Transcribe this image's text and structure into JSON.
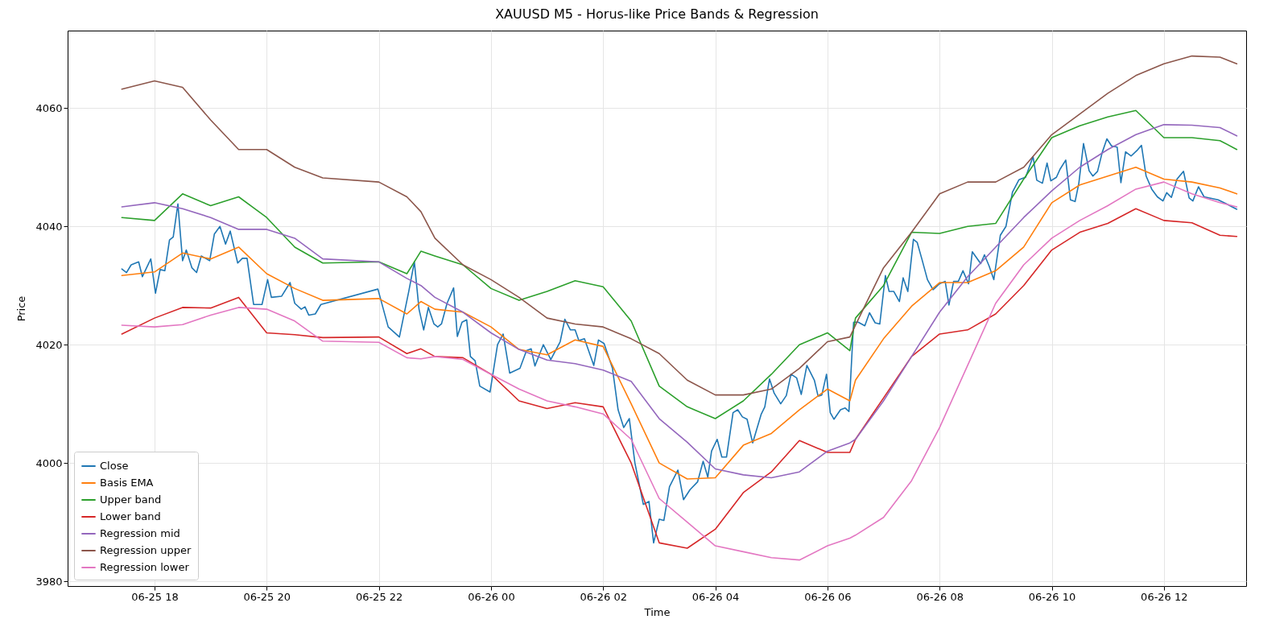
{
  "chart_data": {
    "type": "line",
    "title": "XAUUSD M5 - Horus-like Price Bands & Regression",
    "xlabel": "Time",
    "ylabel": "Price",
    "x": [
      "--06-25T17:25",
      "--06-25T18:00",
      "--06-25T18:30",
      "--06-25T19:00",
      "--06-25T19:30",
      "--06-25T20:00",
      "--06-25T20:30",
      "--06-25T21:00",
      "--06-25T22:00",
      "--06-25T22:30",
      "--06-25T22:45",
      "--06-25T23:00",
      "--06-25T23:30",
      "--06-26T00:00",
      "--06-26T00:30",
      "--06-26T01:00",
      "--06-26T01:30",
      "--06-26T02:00",
      "--06-26T02:30",
      "--06-26T03:00",
      "--06-26T03:30",
      "--06-26T04:00",
      "--06-26T04:30",
      "--06-26T05:00",
      "--06-26T05:30",
      "--06-26T06:00",
      "--06-26T06:24",
      "--06-26T06:30",
      "--06-26T07:00",
      "--06-26T07:30",
      "--06-26T08:00",
      "--06-26T08:30",
      "--06-26T09:00",
      "--06-26T09:30",
      "--06-26T10:00",
      "--06-26T10:30",
      "--06-26T11:00",
      "--06-26T11:30",
      "--06-26T12:00",
      "--06-26T12:30",
      "--06-26T13:00",
      "--06-26T13:18"
    ],
    "xlim": [
      "--06-25T16:27",
      "--06-26T13:28"
    ],
    "ylim": [
      3979.2,
      4073.1
    ],
    "xticks": [
      {
        "value": "--06-25T18:00",
        "label": "06-25 18"
      },
      {
        "value": "--06-25T20:00",
        "label": "06-25 20"
      },
      {
        "value": "--06-25T22:00",
        "label": "06-25 22"
      },
      {
        "value": "--06-26T00:00",
        "label": "06-26 00"
      },
      {
        "value": "--06-26T02:00",
        "label": "06-26 02"
      },
      {
        "value": "--06-26T04:00",
        "label": "06-26 04"
      },
      {
        "value": "--06-26T06:00",
        "label": "06-26 06"
      },
      {
        "value": "--06-26T08:00",
        "label": "06-26 08"
      },
      {
        "value": "--06-26T10:00",
        "label": "06-26 10"
      },
      {
        "value": "--06-26T12:00",
        "label": "06-26 12"
      }
    ],
    "yticks": [
      3980,
      4000,
      4020,
      4040,
      4060
    ],
    "grid": true,
    "legend": "bottom left",
    "series": [
      {
        "name": "Close",
        "color": "#1f77b4",
        "x": [
          "--06-25T17:25",
          "--06-25T17:30",
          "--06-25T17:35",
          "--06-25T17:43",
          "--06-25T17:47",
          "--06-25T17:56",
          "--06-25T18:01",
          "--06-25T18:06",
          "--06-25T18:11",
          "--06-25T18:16",
          "--06-25T18:20",
          "--06-25T18:25",
          "--06-25T18:30",
          "--06-25T18:34",
          "--06-25T18:40",
          "--06-25T18:45",
          "--06-25T18:50",
          "--06-25T18:59",
          "--06-25T19:04",
          "--06-25T19:10",
          "--06-25T19:16",
          "--06-25T19:21",
          "--06-25T19:29",
          "--06-25T19:34",
          "--06-25T19:39",
          "--06-25T19:46",
          "--06-25T19:55",
          "--06-25T20:01",
          "--06-25T20:05",
          "--06-25T20:16",
          "--06-25T20:25",
          "--06-25T20:30",
          "--06-25T20:37",
          "--06-25T20:41",
          "--06-25T20:45",
          "--06-25T20:52",
          "--06-25T20:58",
          "--06-25T21:59",
          "--06-25T22:10",
          "--06-25T22:22",
          "--06-25T22:32",
          "--06-25T22:38",
          "--06-25T22:43",
          "--06-25T22:48",
          "--06-25T22:53",
          "--06-25T22:59",
          "--06-25T23:03",
          "--06-25T23:07",
          "--06-25T23:13",
          "--06-25T23:20",
          "--06-25T23:24",
          "--06-25T23:29",
          "--06-25T23:34",
          "--06-25T23:38",
          "--06-25T23:43",
          "--06-25T23:48",
          "--06-25T23:59",
          "--06-26T00:07",
          "--06-26T00:13",
          "--06-26T00:20",
          "--06-26T00:31",
          "--06-26T00:38",
          "--06-26T00:43",
          "--06-26T00:47",
          "--06-26T00:56",
          "--06-26T01:04",
          "--06-26T01:14",
          "--06-26T01:19",
          "--06-26T01:25",
          "--06-26T01:30",
          "--06-26T01:34",
          "--06-26T01:40",
          "--06-26T01:50",
          "--06-26T01:55",
          "--06-26T02:01",
          "--06-26T02:10",
          "--06-26T02:16",
          "--06-26T02:22",
          "--06-26T02:28",
          "--06-26T02:34",
          "--06-26T02:43",
          "--06-26T02:49",
          "--06-26T02:54",
          "--06-26T03:00",
          "--06-26T03:05",
          "--06-26T03:11",
          "--06-26T03:20",
          "--06-26T03:26",
          "--06-26T03:33",
          "--06-26T03:41",
          "--06-26T03:47",
          "--06-26T03:52",
          "--06-26T03:56",
          "--06-26T04:02",
          "--06-26T04:07",
          "--06-26T04:12",
          "--06-26T04:19",
          "--06-26T04:24",
          "--06-26T04:29",
          "--06-26T04:34",
          "--06-26T04:40",
          "--06-26T04:49",
          "--06-26T04:53",
          "--06-26T04:58",
          "--06-26T05:03",
          "--06-26T05:10",
          "--06-26T05:16",
          "--06-26T05:21",
          "--06-26T05:27",
          "--06-26T05:32",
          "--06-26T05:38",
          "--06-26T05:46",
          "--06-26T05:50",
          "--06-26T05:54",
          "--06-26T05:59",
          "--06-26T06:03",
          "--06-26T06:07",
          "--06-26T06:14",
          "--06-26T06:19",
          "--06-26T06:23",
          "--06-26T06:28",
          "--06-26T06:33",
          "--06-26T06:40",
          "--06-26T06:45",
          "--06-26T06:51",
          "--06-26T06:56",
          "--06-26T07:02",
          "--06-26T07:06",
          "--06-26T07:11",
          "--06-26T07:17",
          "--06-26T07:21",
          "--06-26T07:26",
          "--06-26T07:32",
          "--06-26T07:36",
          "--06-26T07:41",
          "--06-26T07:47",
          "--06-26T07:53",
          "--06-26T08:00",
          "--06-26T08:06",
          "--06-26T08:10",
          "--06-26T08:15",
          "--06-26T08:20",
          "--06-26T08:25",
          "--06-26T08:31",
          "--06-26T08:35",
          "--06-26T08:44",
          "--06-26T08:48",
          "--06-26T08:53",
          "--06-26T08:58",
          "--06-26T09:05",
          "--06-26T09:11",
          "--06-26T09:18",
          "--06-26T09:25",
          "--06-26T09:32",
          "--06-26T09:40",
          "--06-26T09:44",
          "--06-26T09:50",
          "--06-26T09:55",
          "--06-26T09:59",
          "--06-26T10:05",
          "--06-26T10:09",
          "--06-26T10:15",
          "--06-26T10:20",
          "--06-26T10:25",
          "--06-26T10:29",
          "--06-26T10:34",
          "--06-26T10:40",
          "--06-26T10:44",
          "--06-26T10:49",
          "--06-26T10:54",
          "--06-26T10:59",
          "--06-26T11:04",
          "--06-26T11:10",
          "--06-26T11:14",
          "--06-26T11:19",
          "--06-26T11:25",
          "--06-26T11:31",
          "--06-26T11:36",
          "--06-26T11:41",
          "--06-26T11:47",
          "--06-26T11:53",
          "--06-26T11:59",
          "--06-26T12:03",
          "--06-26T12:08",
          "--06-26T12:14",
          "--06-26T12:21",
          "--06-26T12:27",
          "--06-26T12:31",
          "--06-26T12:37",
          "--06-26T12:43",
          "--06-26T12:58",
          "--06-26T13:07",
          "--06-26T13:18"
        ],
        "values": [
          4032.8,
          4032.2,
          4033.5,
          4034,
          4031.5,
          4034.5,
          4028.7,
          4032.7,
          4032.5,
          4037.7,
          4038.2,
          4043.8,
          4034.2,
          4036,
          4033,
          4032.2,
          4035,
          4034.2,
          4038.7,
          4040,
          4037,
          4039.2,
          4033.8,
          4034.6,
          4034.6,
          4026.8,
          4026.8,
          4031,
          4028,
          4028.2,
          4030.5,
          4027,
          4026,
          4026.4,
          4025,
          4025.2,
          4026.8,
          4029.4,
          4023,
          4021.3,
          4029,
          4034,
          4026,
          4022.5,
          4026.3,
          4023.5,
          4023,
          4023.5,
          4027,
          4029.6,
          4021.4,
          4023.8,
          4024.2,
          4018,
          4017.3,
          4013,
          4012,
          4020,
          4021.8,
          4015.2,
          4016,
          4019,
          4019.3,
          4016.4,
          4020,
          4017.5,
          4020.5,
          4024.3,
          4022.5,
          4022.5,
          4020.7,
          4021,
          4016.5,
          4020.8,
          4020.2,
          4016,
          4009,
          4006,
          4007.5,
          4000,
          3993,
          3993.5,
          3986.5,
          3990.5,
          3990.3,
          3996,
          3998.8,
          3993.8,
          3995.5,
          3996.8,
          4000.3,
          3997.6,
          4002,
          4004,
          4001,
          4001,
          4008.5,
          4009,
          4007.8,
          4007.4,
          4003.4,
          4008.2,
          4009.5,
          4014.2,
          4011.8,
          4010,
          4011.4,
          4015,
          4014.4,
          4011.6,
          4016.5,
          4014,
          4011.3,
          4011.5,
          4015,
          4008.5,
          4007.4,
          4009,
          4009.3,
          4008.7,
          4023.8,
          4023.8,
          4023.2,
          4025.4,
          4023.7,
          4023.5,
          4031.7,
          4029,
          4029,
          4027.3,
          4031.3,
          4029,
          4037.8,
          4037.3,
          4034.5,
          4031,
          4029.3,
          4030.3,
          4030.7,
          4026.7,
          4030.7,
          4030.7,
          4032.5,
          4030.3,
          4035.7,
          4033.7,
          4035.2,
          4033.3,
          4031,
          4038.5,
          4040,
          4045.8,
          4047.9,
          4048.3,
          4051.8,
          4047.8,
          4047.3,
          4050.7,
          4047.7,
          4048.3,
          4049.7,
          4051.2,
          4044.5,
          4044.2,
          4047.3,
          4054,
          4049.4,
          4048.5,
          4049.3,
          4052.5,
          4054.8,
          4053.6,
          4053.4,
          4047.4,
          4052.6,
          4051.9,
          4052.8,
          4053.7,
          4048.5,
          4046.3,
          4045,
          4044.3,
          4045.7,
          4044.9,
          4048,
          4049.3,
          4044.8,
          4044.3,
          4046.7,
          4045,
          4044.5,
          4043.8,
          4042.9
        ]
      },
      {
        "name": "Basis EMA",
        "color": "#ff7f0e",
        "values": [
          4031.7,
          4032.3,
          4035.5,
          4034.5,
          4036.5,
          4032,
          4029.5,
          4027.5,
          4027.8,
          4025.2,
          4027.3,
          4026,
          4025.5,
          4023,
          4019.2,
          4018.3,
          4020.8,
          4019.7,
          4010,
          4000,
          3997.3,
          3997.5,
          4003,
          4005,
          4009,
          4012.5,
          4010.5,
          4014,
          4021,
          4026.5,
          4030.5,
          4030.5,
          4032.5,
          4036.5,
          4044,
          4047,
          4048.5,
          4050,
          4048,
          4047.5,
          4046.5,
          4045.5
        ]
      },
      {
        "name": "Upper band",
        "color": "#2ca02c",
        "values": [
          4041.5,
          4041,
          4045.5,
          4043.5,
          4045,
          4041.5,
          4036.5,
          4033.8,
          4034,
          4032,
          4035.8,
          4035,
          4033.5,
          4029.5,
          4027.5,
          4029,
          4030.8,
          4029.8,
          4024,
          4013,
          4009.5,
          4007.5,
          4010.5,
          4015,
          4020,
          4022,
          4019,
          4024.5,
          4030,
          4039,
          4038.8,
          4040,
          4040.5,
          4048,
          4055,
          4057,
          4058.5,
          4059.6,
          4055,
          4055,
          4054.5,
          4053
        ]
      },
      {
        "name": "Lower band",
        "color": "#d62728",
        "values": [
          4021.8,
          4024.5,
          4026.3,
          4026.2,
          4028,
          4022,
          4021.7,
          4021.2,
          4021.3,
          4018.5,
          4019.3,
          4018,
          4017.8,
          4015,
          4010.5,
          4009.2,
          4010.2,
          4009.5,
          4000,
          3986.5,
          3985.6,
          3988.8,
          3995,
          3998.5,
          4003.8,
          4001.8,
          4001.8,
          4004,
          4011,
          4018,
          4021.8,
          4022.5,
          4025.2,
          4030,
          4036,
          4039,
          4040.5,
          4043,
          4041,
          4040.6,
          4038.5,
          4038.3
        ]
      },
      {
        "name": "Regression mid",
        "color": "#9467bd",
        "values": [
          4043.3,
          4044,
          4043,
          4041.5,
          4039.5,
          4039.5,
          4038,
          4034.5,
          4034,
          4031.2,
          4030,
          4028,
          4025.5,
          4022,
          4019.2,
          4017.4,
          4016.8,
          4015.7,
          4013.8,
          4007.5,
          4003.5,
          3999,
          3998,
          3997.5,
          3998.5,
          4002,
          4003.4,
          4004,
          4010.5,
          4018,
          4025.5,
          4031.5,
          4036.5,
          4041.5,
          4046,
          4050,
          4053,
          4055.5,
          4057.2,
          4057.1,
          4056.7,
          4055.3
        ]
      },
      {
        "name": "Regression upper",
        "color": "#8c564b",
        "values": [
          4063.2,
          4064.6,
          4063.5,
          4058,
          4053,
          4053,
          4050,
          4048.2,
          4047.5,
          4045,
          4042.5,
          4038,
          4033.5,
          4031,
          4028,
          4024.5,
          4023.5,
          4023,
          4021,
          4018.5,
          4014,
          4011.5,
          4011.5,
          4012.5,
          4016,
          4020.5,
          4021.3,
          4023.3,
          4033,
          4039,
          4045.5,
          4047.5,
          4047.5,
          4050,
          4055.5,
          4059,
          4062.5,
          4065.5,
          4067.5,
          4068.8,
          4068.6,
          4067.5
        ]
      },
      {
        "name": "Regression lower",
        "color": "#e377c2",
        "values": [
          4023.3,
          4023,
          4023.4,
          4025,
          4026.3,
          4026,
          4024,
          4020.6,
          4020.4,
          4017.8,
          4017.6,
          4018,
          4017.5,
          4015,
          4012.5,
          4010.5,
          4009.5,
          4008.3,
          4004,
          3994,
          3990,
          3986,
          3985,
          3984,
          3983.6,
          3986,
          3987.3,
          3987.8,
          3990.8,
          3997,
          4006,
          4016.5,
          4027,
          4033.5,
          4038,
          4041,
          4043.5,
          4046.3,
          4047.5,
          4045.5,
          4044,
          4043.3
        ]
      }
    ]
  }
}
